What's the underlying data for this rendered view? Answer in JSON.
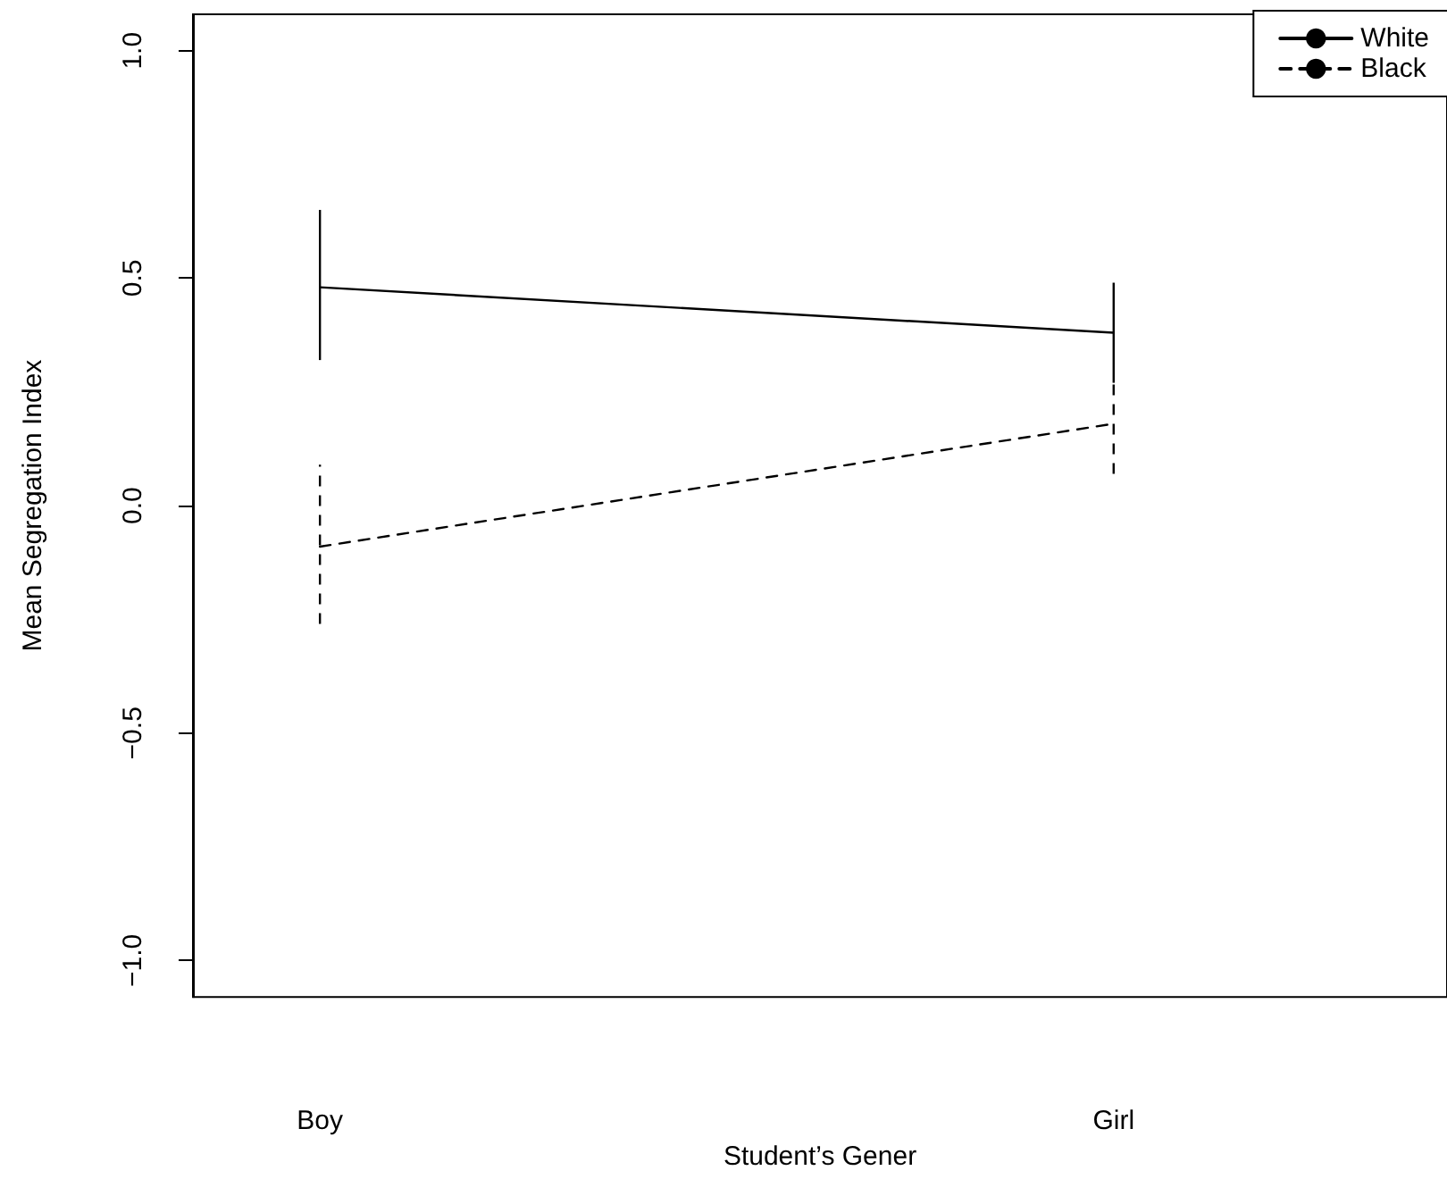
{
  "chart_data": {
    "type": "line",
    "xlabel": "Student’s Gener",
    "ylabel": "Mean Segregation Index",
    "categories": [
      "Boy",
      "Girl"
    ],
    "ylim": [
      -1.08,
      1.08
    ],
    "yticks": [
      {
        "value": -1,
        "label": "−1.0"
      },
      {
        "value": -0.5,
        "label": "−0.5"
      },
      {
        "value": 0,
        "label": "0.0"
      },
      {
        "value": 0.5,
        "label": "0.5"
      },
      {
        "value": 1,
        "label": "1.0"
      }
    ],
    "legend": "top right",
    "marker": "none",
    "series": [
      {
        "name": "White",
        "color": "#000000",
        "line_style": "solid",
        "values": [
          0.48,
          0.38
        ],
        "errors": [
          [
            0.32,
            0.65
          ],
          [
            0.27,
            0.49
          ]
        ]
      },
      {
        "name": "Black",
        "color": "#000000",
        "line_style": "dashed",
        "values": [
          -0.09,
          0.18
        ],
        "errors": [
          [
            -0.26,
            0.09
          ],
          [
            0.07,
            0.28
          ]
        ]
      }
    ]
  }
}
